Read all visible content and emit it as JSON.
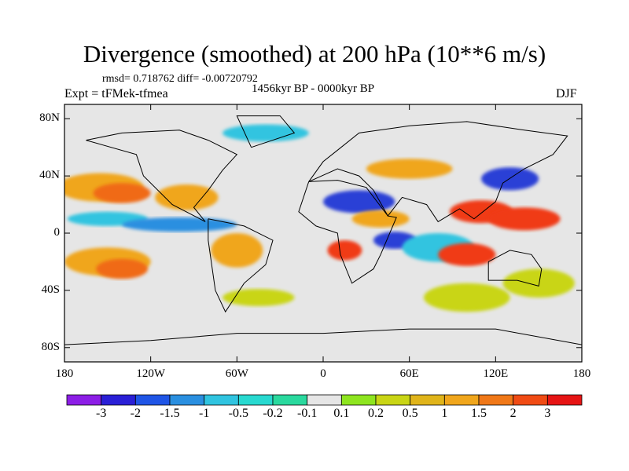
{
  "title": "Divergence (smoothed) at 200 hPa (10**6 m/s)",
  "stats_text": "rmsd= 0.718762 diff= -0.00720792",
  "experiment_text": "Expt = tFMek-tfmea",
  "period_text": "1456kyr BP - 0000kyr BP",
  "season_text": "DJF",
  "map": {
    "lon_range": [
      -180,
      180
    ],
    "lat_range": [
      -90,
      90
    ],
    "lat_ticks": [
      {
        "value": 80,
        "label": "80N"
      },
      {
        "value": 40,
        "label": "40N"
      },
      {
        "value": 0,
        "label": "0"
      },
      {
        "value": -40,
        "label": "40S"
      },
      {
        "value": -80,
        "label": "80S"
      }
    ],
    "lon_ticks": [
      {
        "value": -180,
        "label": "180"
      },
      {
        "value": -120,
        "label": "120W"
      },
      {
        "value": -60,
        "label": "60W"
      },
      {
        "value": 0,
        "label": "0"
      },
      {
        "value": 60,
        "label": "60E"
      },
      {
        "value": 120,
        "label": "120E"
      },
      {
        "value": 180,
        "label": "180"
      }
    ],
    "background_color": "#e6e6e6",
    "coast_color": "#000000",
    "fields": [
      {
        "lon": -155,
        "lat": 32,
        "rx": 30,
        "ry": 10,
        "color": "#f0a61c"
      },
      {
        "lon": -140,
        "lat": 28,
        "rx": 20,
        "ry": 7,
        "color": "#f06a16"
      },
      {
        "lon": -95,
        "lat": 25,
        "rx": 22,
        "ry": 9,
        "color": "#f0a61c"
      },
      {
        "lon": -150,
        "lat": 10,
        "rx": 28,
        "ry": 5,
        "color": "#30c4e0"
      },
      {
        "lon": -100,
        "lat": 6,
        "rx": 40,
        "ry": 5,
        "color": "#2a8fe0"
      },
      {
        "lon": -150,
        "lat": -20,
        "rx": 30,
        "ry": 10,
        "color": "#f0a61c"
      },
      {
        "lon": -140,
        "lat": -25,
        "rx": 18,
        "ry": 7,
        "color": "#f06a16"
      },
      {
        "lon": -60,
        "lat": -12,
        "rx": 18,
        "ry": 12,
        "color": "#f0a61c"
      },
      {
        "lon": -45,
        "lat": -45,
        "rx": 25,
        "ry": 6,
        "color": "#c9d515"
      },
      {
        "lon": 25,
        "lat": 22,
        "rx": 25,
        "ry": 8,
        "color": "#2a3fd6"
      },
      {
        "lon": 40,
        "lat": 10,
        "rx": 20,
        "ry": 6,
        "color": "#f0a61c"
      },
      {
        "lon": 15,
        "lat": -12,
        "rx": 12,
        "ry": 7,
        "color": "#f03a14"
      },
      {
        "lon": 50,
        "lat": -5,
        "rx": 15,
        "ry": 6,
        "color": "#2a3fd6"
      },
      {
        "lon": 80,
        "lat": -10,
        "rx": 25,
        "ry": 10,
        "color": "#30c4e0"
      },
      {
        "lon": 110,
        "lat": 15,
        "rx": 22,
        "ry": 8,
        "color": "#f03a14"
      },
      {
        "lon": 140,
        "lat": 10,
        "rx": 25,
        "ry": 8,
        "color": "#f03a14"
      },
      {
        "lon": 130,
        "lat": 38,
        "rx": 20,
        "ry": 8,
        "color": "#2a3fd6"
      },
      {
        "lon": 100,
        "lat": -15,
        "rx": 20,
        "ry": 8,
        "color": "#f03a14"
      },
      {
        "lon": 150,
        "lat": -35,
        "rx": 25,
        "ry": 10,
        "color": "#c9d515"
      },
      {
        "lon": 100,
        "lat": -45,
        "rx": 30,
        "ry": 10,
        "color": "#c9d515"
      },
      {
        "lon": 60,
        "lat": 45,
        "rx": 30,
        "ry": 7,
        "color": "#f0a61c"
      },
      {
        "lon": -40,
        "lat": 70,
        "rx": 30,
        "ry": 6,
        "color": "#30c4e0"
      }
    ],
    "coastlines": [
      [
        [
          -165,
          65
        ],
        [
          -140,
          70
        ],
        [
          -100,
          72
        ],
        [
          -80,
          65
        ],
        [
          -60,
          55
        ],
        [
          -70,
          44
        ],
        [
          -80,
          30
        ],
        [
          -90,
          18
        ],
        [
          -82,
          8
        ],
        [
          -105,
          20
        ],
        [
          -125,
          40
        ],
        [
          -130,
          55
        ],
        [
          -165,
          65
        ]
      ],
      [
        [
          -80,
          10
        ],
        [
          -55,
          5
        ],
        [
          -35,
          -5
        ],
        [
          -40,
          -22
        ],
        [
          -55,
          -35
        ],
        [
          -68,
          -55
        ],
        [
          -75,
          -40
        ],
        [
          -80,
          -5
        ],
        [
          -80,
          10
        ]
      ],
      [
        [
          -50,
          60
        ],
        [
          -20,
          70
        ],
        [
          -30,
          82
        ],
        [
          -60,
          82
        ],
        [
          -50,
          60
        ]
      ],
      [
        [
          -10,
          36
        ],
        [
          10,
          37
        ],
        [
          30,
          32
        ],
        [
          45,
          12
        ],
        [
          51,
          11
        ],
        [
          40,
          -15
        ],
        [
          35,
          -25
        ],
        [
          20,
          -35
        ],
        [
          12,
          -15
        ],
        [
          10,
          0
        ],
        [
          -5,
          5
        ],
        [
          -17,
          15
        ],
        [
          -10,
          36
        ]
      ],
      [
        [
          -10,
          36
        ],
        [
          0,
          50
        ],
        [
          10,
          58
        ],
        [
          25,
          70
        ],
        [
          60,
          75
        ],
        [
          100,
          78
        ],
        [
          140,
          72
        ],
        [
          170,
          68
        ],
        [
          160,
          55
        ],
        [
          140,
          45
        ],
        [
          125,
          35
        ],
        [
          120,
          22
        ],
        [
          105,
          10
        ],
        [
          95,
          17
        ],
        [
          80,
          8
        ],
        [
          72,
          20
        ],
        [
          55,
          25
        ],
        [
          45,
          12
        ],
        [
          35,
          30
        ],
        [
          25,
          40
        ],
        [
          10,
          45
        ],
        [
          -10,
          36
        ]
      ],
      [
        [
          115,
          -20
        ],
        [
          130,
          -12
        ],
        [
          145,
          -15
        ],
        [
          152,
          -25
        ],
        [
          150,
          -37
        ],
        [
          135,
          -33
        ],
        [
          115,
          -33
        ],
        [
          115,
          -20
        ]
      ],
      [
        [
          -180,
          -78
        ],
        [
          -120,
          -75
        ],
        [
          -60,
          -70
        ],
        [
          0,
          -70
        ],
        [
          60,
          -67
        ],
        [
          120,
          -67
        ],
        [
          180,
          -78
        ]
      ]
    ]
  },
  "colorbar": {
    "colors": [
      "#8c1ee6",
      "#2a1fd6",
      "#1f55e6",
      "#2a8fe0",
      "#30c4e0",
      "#28d9d0",
      "#2ad99e",
      "#e6e6e6",
      "#8ee51f",
      "#c9d515",
      "#e0b41a",
      "#f0a61c",
      "#f07818",
      "#f04b14",
      "#e61414"
    ],
    "labels": [
      "-3",
      "-2",
      "-1.5",
      "-1",
      "-0.5",
      "-0.2",
      "-0.1",
      "0.1",
      "0.2",
      "0.5",
      "1",
      "1.5",
      "2",
      "3"
    ]
  }
}
